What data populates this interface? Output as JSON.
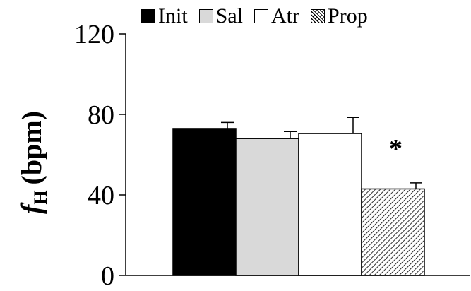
{
  "chart_data": {
    "type": "bar",
    "categories": [
      "Init",
      "Sal",
      "Atr",
      "Prop"
    ],
    "values": [
      73,
      68,
      70.5,
      43
    ],
    "errors": [
      3,
      3.5,
      8,
      3
    ],
    "colors": [
      "#000000",
      "#d9d9d9",
      "#ffffff",
      "hatch"
    ],
    "legend": [
      "Init",
      "Sal",
      "Atr",
      "Prop"
    ],
    "legend_position": "top",
    "ylabel_main": "f",
    "ylabel_sub": "H",
    "ylabel_unit": "(bpm)",
    "ylim": [
      0,
      120
    ],
    "yticks": [
      "0",
      "40",
      "80",
      "120"
    ],
    "annotation": "*",
    "annotation_category": "Prop",
    "grid": false
  }
}
